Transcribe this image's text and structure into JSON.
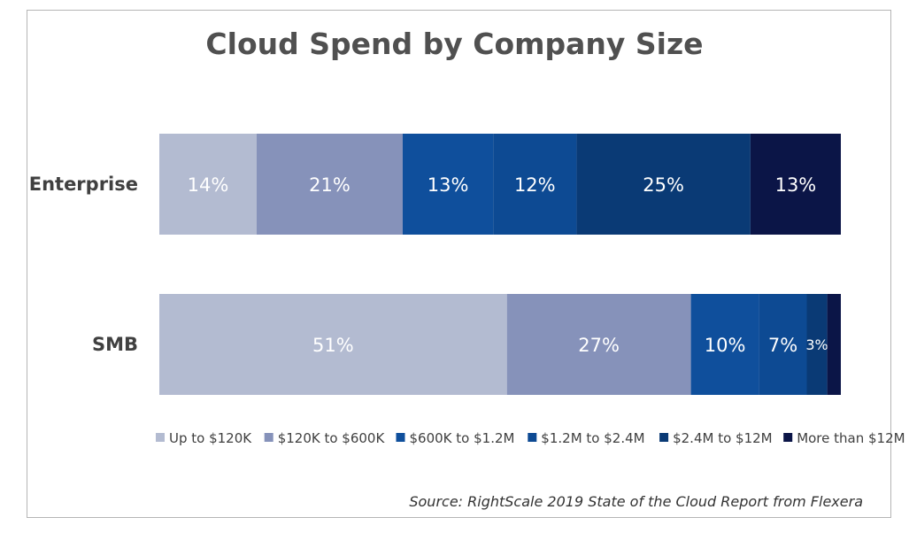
{
  "chart_data": {
    "type": "bar",
    "orientation": "horizontal",
    "stacked": true,
    "percent": true,
    "title": "Cloud Spend by Company Size",
    "categories": [
      "Enterprise",
      "SMB"
    ],
    "series": [
      {
        "name": "Up to $120K",
        "color": "#b3bbd1",
        "values": [
          14,
          51
        ],
        "labels": [
          "14%",
          "51%"
        ]
      },
      {
        "name": "$120K to $600K",
        "color": "#8692ba",
        "values": [
          21,
          27
        ],
        "labels": [
          "21%",
          "27%"
        ]
      },
      {
        "name": "$600K to $1.2M",
        "color": "#0f4f9c",
        "values": [
          13,
          10
        ],
        "labels": [
          "13%",
          "10%"
        ]
      },
      {
        "name": "$1.2M to $2.4M",
        "color": "#0d4a93",
        "values": [
          12,
          7
        ],
        "labels": [
          "12%",
          "7%"
        ]
      },
      {
        "name": "$2.4M to $12M",
        "color": "#0a3a75",
        "values": [
          25,
          3
        ],
        "labels": [
          "25%",
          "3%"
        ]
      },
      {
        "name": "More than $12M",
        "color": "#0b1547",
        "values": [
          13,
          2
        ],
        "labels": [
          "13%",
          ""
        ]
      }
    ],
    "legend_position": "bottom",
    "grid": false
  },
  "source_note": "Source: RightScale 2019 State of the Cloud Report from Flexera"
}
